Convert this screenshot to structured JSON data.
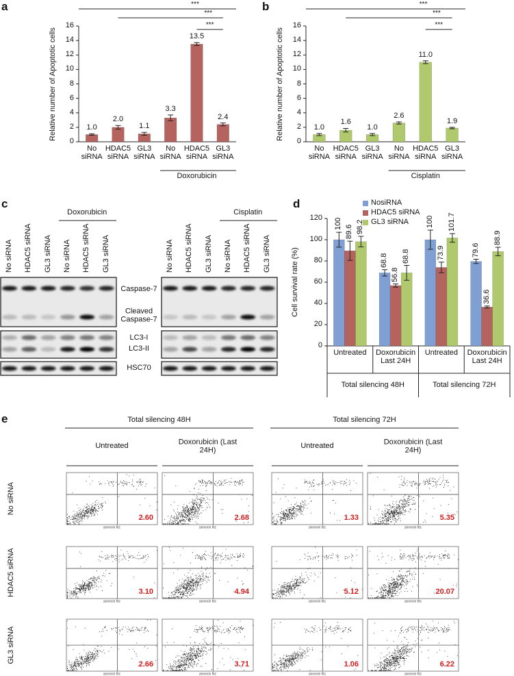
{
  "chart_data": [
    {
      "type": "bar",
      "panel_label": "a",
      "y_label": "Relative number of Apoptotic cells",
      "categories": [
        "No siRNA",
        "HDAC5 siRNA",
        "GL3 siRNA",
        "No siRNA",
        "HDAC5 siRNA",
        "GL3 siRNA"
      ],
      "values": [
        1.0,
        2.0,
        1.1,
        3.3,
        13.5,
        2.4
      ],
      "value_labels": [
        "1.0",
        "2.0",
        "1.1",
        "3.3",
        "13.5",
        "2.4"
      ],
      "errors": [
        0.1,
        0.25,
        0.2,
        0.4,
        0.2,
        0.2
      ],
      "color": "#b5635f",
      "ylim": [
        0,
        16
      ],
      "yticks": [
        0,
        2,
        4,
        6,
        8,
        10,
        12,
        14,
        16
      ],
      "group_label": "Doxorubicin",
      "significance": [
        "***",
        "***",
        "***"
      ]
    },
    {
      "type": "bar",
      "panel_label": "b",
      "y_label": "Relative number of Apoptotic cells",
      "categories": [
        "No siRNA",
        "HDAC5 siRNA",
        "GL3 siRNA",
        "No siRNA",
        "HDAC5 siRNA",
        "GL3 siRNA"
      ],
      "values": [
        1.0,
        1.6,
        1.0,
        2.6,
        11.0,
        1.9
      ],
      "value_labels": [
        "1.0",
        "1.6",
        "1.0",
        "2.6",
        "11.0",
        "1.9"
      ],
      "errors": [
        0.15,
        0.25,
        0.15,
        0.15,
        0.2,
        0.1
      ],
      "color": "#afc96c",
      "ylim": [
        0,
        16
      ],
      "yticks": [
        0,
        2,
        4,
        6,
        8,
        10,
        12,
        14,
        16
      ],
      "group_label": "Cisplatin",
      "significance": [
        "***",
        "***",
        "***"
      ]
    },
    {
      "type": "bar",
      "panel_label": "d",
      "y_label": "Cell survival rate (%)",
      "categories": [
        "Untreated",
        "Doxorubicin Last 24H",
        "Untreated",
        "Doxorubicin Last 24H"
      ],
      "groups": [
        "Total silencing 48H",
        "Total silencing 72H"
      ],
      "series": [
        {
          "name": "NosiRNA",
          "color": "#809fd2",
          "values": [
            100,
            68.8,
            100,
            79.6
          ],
          "errors": [
            7,
            3,
            9,
            2
          ]
        },
        {
          "name": "HDAC5 siRNA",
          "color": "#b5635f",
          "values": [
            89.6,
            56.8,
            73.9,
            36.6
          ],
          "errors": [
            9,
            1.5,
            5,
            1
          ]
        },
        {
          "name": "GL3 siRNA",
          "color": "#afc96c",
          "values": [
            98.2,
            68.8,
            101.7,
            88.9
          ],
          "errors": [
            5,
            7,
            4,
            4
          ]
        }
      ],
      "ylim": [
        0,
        120
      ],
      "yticks": [
        0,
        20,
        40,
        60,
        80,
        100,
        120
      ],
      "legend": "top-left"
    }
  ],
  "western_blot": {
    "panel_label": "c",
    "left": {
      "treatment": "Doxorubicin",
      "lanes": [
        "No siRNA",
        "HDAC5 siRNA",
        "GL3 siRNA",
        "No siRNA",
        "HDAC5 siRNA",
        "GL3 siRNA"
      ]
    },
    "right": {
      "treatment": "Cisplatin",
      "lanes": [
        "No siRNA",
        "HDAC5 siRNA",
        "GL3 siRNA",
        "No siRNA",
        "HDAC5 siRNA",
        "GL3 siRNA"
      ]
    },
    "band_labels": [
      "Caspase-7",
      "Cleaved Caspase-7",
      "LC3-I",
      "LC3-II",
      "HSC70"
    ]
  },
  "flow_cytometry": {
    "panel_label": "e",
    "groups": [
      {
        "title": "Total silencing 48H",
        "columns": [
          "Untreated",
          "Doxorubicin (Last 24H)"
        ]
      },
      {
        "title": "Total silencing 72H",
        "columns": [
          "Untreated",
          "Doxorubicin (Last 24H)"
        ]
      }
    ],
    "rows": [
      "No siRNA",
      "HDAC5 siRNA",
      "GL3 siRNA"
    ],
    "x_axis_label": "annexin fitc",
    "values": [
      [
        "2.60",
        "2.68",
        "1.33",
        "5.35"
      ],
      [
        "3.10",
        "4.94",
        "5.12",
        "20.07"
      ],
      [
        "2.66",
        "3.71",
        "1.06",
        "6.22"
      ]
    ]
  }
}
